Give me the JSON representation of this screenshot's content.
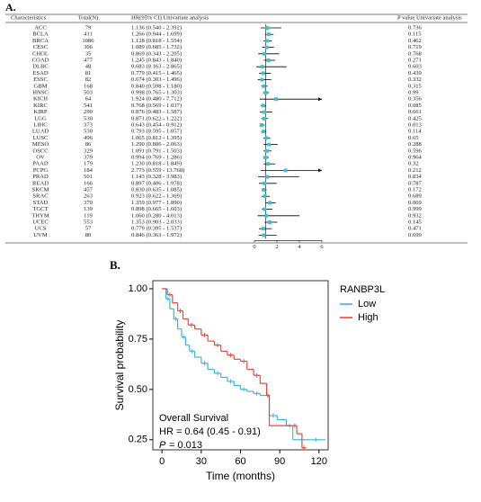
{
  "chart_data": [
    {
      "type": "forest",
      "panel_label": "A.",
      "columns": [
        "Characteristics",
        "Total(N)",
        "HR(95% CI) Univariate analysis",
        "P value Univariate analysis"
      ],
      "xlim": [
        0,
        6
      ],
      "xticks": [
        0,
        2,
        4,
        6
      ],
      "reference": 1,
      "color": "#3ec1d3",
      "rows": [
        {
          "name": "ACC",
          "n": 79,
          "hr_label": "1.136 (0.540 - 2.392)",
          "hr": 1.136,
          "lo": 0.54,
          "hi": 2.392,
          "p": 0.736
        },
        {
          "name": "BCLA",
          "n": 411,
          "hr_label": "1.266 (0.944 - 1.699)",
          "hr": 1.266,
          "lo": 0.944,
          "hi": 1.699,
          "p": 0.115
        },
        {
          "name": "BRCA",
          "n": 1086,
          "hr_label": "1.128 (0.818 - 1.554)",
          "hr": 1.128,
          "lo": 0.818,
          "hi": 1.554,
          "p": 0.462
        },
        {
          "name": "CESC",
          "n": 306,
          "hr_label": "1.089 (0.685 - 1.732)",
          "hr": 1.089,
          "lo": 0.685,
          "hi": 1.732,
          "p": 0.719
        },
        {
          "name": "CHOL",
          "n": 35,
          "hr_label": "0.869 (0.343 - 2.205)",
          "hr": 0.869,
          "lo": 0.343,
          "hi": 2.205,
          "p": 0.768
        },
        {
          "name": "COAD",
          "n": 477,
          "hr_label": "1.245 (0.843 - 1.840)",
          "hr": 1.245,
          "lo": 0.843,
          "hi": 1.84,
          "p": 0.271
        },
        {
          "name": "DLBC",
          "n": 48,
          "hr_label": "0.683 (0.163 - 2.865)",
          "hr": 0.683,
          "lo": 0.163,
          "hi": 2.865,
          "p": 0.603
        },
        {
          "name": "ESAD",
          "n": 81,
          "hr_label": "0.779 (0.415 - 1.465)",
          "hr": 0.779,
          "lo": 0.415,
          "hi": 1.465,
          "p": 0.439
        },
        {
          "name": "ESSC",
          "n": 82,
          "hr_label": "0.674 (0.303 - 1.496)",
          "hr": 0.674,
          "lo": 0.303,
          "hi": 1.496,
          "p": 0.332
        },
        {
          "name": "GBM",
          "n": 168,
          "hr_label": "0.840 (0.598 - 1.180)",
          "hr": 0.84,
          "lo": 0.598,
          "hi": 1.18,
          "p": 0.315
        },
        {
          "name": "HNSC",
          "n": 503,
          "hr_label": "0.998 (0.765 - 1.303)",
          "hr": 0.998,
          "lo": 0.765,
          "hi": 1.303,
          "p": 0.99
        },
        {
          "name": "KICH",
          "n": 64,
          "hr_label": "1.924 (0.480 - 7.712)",
          "hr": 1.924,
          "lo": 0.48,
          "hi": 7.712,
          "p": 0.356
        },
        {
          "name": "KIRC",
          "n": 541,
          "hr_label": "0.768 (0.569 - 1.037)",
          "hr": 0.768,
          "lo": 0.569,
          "hi": 1.037,
          "p": 0.085
        },
        {
          "name": "KIRP",
          "n": 290,
          "hr_label": "0.876 (0.483 - 1.587)",
          "hr": 0.876,
          "lo": 0.483,
          "hi": 1.587,
          "p": 0.661
        },
        {
          "name": "LGG",
          "n": 530,
          "hr_label": "0.871 (0.622 - 1.222)",
          "hr": 0.871,
          "lo": 0.622,
          "hi": 1.222,
          "p": 0.425
        },
        {
          "name": "LIHC",
          "n": 373,
          "hr_label": "0.643 (0.454 - 0.912)",
          "hr": 0.643,
          "lo": 0.454,
          "hi": 0.912,
          "p": 0.013
        },
        {
          "name": "LUAD",
          "n": 530,
          "hr_label": "0.793 (0.595 - 1.057)",
          "hr": 0.793,
          "lo": 0.595,
          "hi": 1.057,
          "p": 0.114
        },
        {
          "name": "LUSC",
          "n": 496,
          "hr_label": "1.065 (0.812 - 1.395)",
          "hr": 1.065,
          "lo": 0.812,
          "hi": 1.395,
          "p": 0.65
        },
        {
          "name": "MESO",
          "n": 86,
          "hr_label": "1.290 (0.806 - 2.063)",
          "hr": 1.29,
          "lo": 0.806,
          "hi": 2.063,
          "p": 0.288
        },
        {
          "name": "OSCC",
          "n": 329,
          "hr_label": "1.091 (0.791 - 1.503)",
          "hr": 1.091,
          "lo": 0.791,
          "hi": 1.503,
          "p": 0.596
        },
        {
          "name": "OV",
          "n": 379,
          "hr_label": "0.994 (0.769 - 1.286)",
          "hr": 0.994,
          "lo": 0.769,
          "hi": 1.286,
          "p": 0.964
        },
        {
          "name": "PAAD",
          "n": 179,
          "hr_label": "1.230 (0.818 - 1.849)",
          "hr": 1.23,
          "lo": 0.818,
          "hi": 1.849,
          "p": 0.32
        },
        {
          "name": "PCPG",
          "n": 184,
          "hr_label": "2.773 (0.559 - 13.768)",
          "hr": 2.773,
          "lo": 0.559,
          "hi": 13.768,
          "p": 0.212
        },
        {
          "name": "PRAD",
          "n": 501,
          "hr_label": "1.143 (0.328 - 3.983)",
          "hr": 1.143,
          "lo": 0.328,
          "hi": 3.983,
          "p": 0.834
        },
        {
          "name": "READ",
          "n": 166,
          "hr_label": "0.897 (0.406 - 1.978)",
          "hr": 0.897,
          "lo": 0.406,
          "hi": 1.978,
          "p": 0.787
        },
        {
          "name": "SKCM",
          "n": 457,
          "hr_label": "0.830 (0.635 - 1.085)",
          "hr": 0.83,
          "lo": 0.635,
          "hi": 1.085,
          "p": 0.172
        },
        {
          "name": "SRAC",
          "n": 263,
          "hr_label": "0.923 (0.622 - 1.369)",
          "hr": 0.923,
          "lo": 0.622,
          "hi": 1.369,
          "p": 0.689
        },
        {
          "name": "STAD",
          "n": 370,
          "hr_label": "1.359 (0.977 - 1.890)",
          "hr": 1.359,
          "lo": 0.977,
          "hi": 1.89,
          "p": 0.069
        },
        {
          "name": "TGCT",
          "n": 139,
          "hr_label": "0.898 (0.665 - 1.603)",
          "hr": 0.898,
          "lo": 0.665,
          "hi": 1.603,
          "p": 0.999
        },
        {
          "name": "THYM",
          "n": 119,
          "hr_label": "1.060 (0.280 - 4.013)",
          "hr": 1.06,
          "lo": 0.28,
          "hi": 4.013,
          "p": 0.932
        },
        {
          "name": "UCEC",
          "n": 553,
          "hr_label": "1.353 (0.903 - 2.033)",
          "hr": 1.353,
          "lo": 0.903,
          "hi": 2.033,
          "p": 0.145
        },
        {
          "name": "UCS",
          "n": 57,
          "hr_label": "0.779 (0.395 - 1.537)",
          "hr": 0.779,
          "lo": 0.395,
          "hi": 1.537,
          "p": 0.471
        },
        {
          "name": "UVM",
          "n": 80,
          "hr_label": "0.846 (0.363 - 1.972)",
          "hr": 0.846,
          "lo": 0.363,
          "hi": 1.972,
          "p": 0.699
        }
      ]
    },
    {
      "type": "survival",
      "panel_label": "B.",
      "xlabel": "Time (months)",
      "ylabel": "Survival probability",
      "legend_title": "RANBP3L",
      "xlim": [
        -7,
        127
      ],
      "xticks": [
        0,
        30,
        60,
        90,
        120
      ],
      "ylim": [
        0.2,
        1.04
      ],
      "yticks": [
        {
          "value": 0.25,
          "label": "0.25"
        },
        {
          "value": 0.5,
          "label": "0.50"
        },
        {
          "value": 0.75,
          "label": "0.75"
        },
        {
          "value": 1,
          "label": "1.00"
        }
      ],
      "annotations": [
        "Overall Survival",
        "HR = 0.64 (0.45 -  0.91)",
        "P",
        "= 0.013"
      ],
      "series": [
        {
          "name": "Low",
          "color": "#3bb5d6",
          "x": [
            0,
            3,
            6,
            9,
            12,
            15,
            18,
            21,
            25,
            30,
            35,
            40,
            45,
            50,
            55,
            60,
            65,
            70,
            75,
            82,
            88,
            95,
            100,
            110,
            125
          ],
          "values": [
            1.0,
            0.95,
            0.9,
            0.85,
            0.8,
            0.76,
            0.72,
            0.69,
            0.66,
            0.63,
            0.6,
            0.58,
            0.56,
            0.54,
            0.52,
            0.5,
            0.49,
            0.48,
            0.47,
            0.37,
            0.35,
            0.32,
            0.25,
            0.25,
            0.25
          ]
        },
        {
          "name": "High",
          "color": "#e8483b",
          "x": [
            0,
            4,
            8,
            12,
            16,
            20,
            25,
            30,
            35,
            40,
            45,
            50,
            55,
            60,
            65,
            70,
            75,
            80,
            82,
            100,
            103,
            107,
            110
          ],
          "values": [
            1.0,
            0.97,
            0.93,
            0.89,
            0.85,
            0.82,
            0.8,
            0.77,
            0.74,
            0.72,
            0.69,
            0.67,
            0.65,
            0.64,
            0.6,
            0.57,
            0.53,
            0.47,
            0.32,
            0.32,
            0.28,
            0.21,
            0.21
          ]
        }
      ]
    }
  ]
}
